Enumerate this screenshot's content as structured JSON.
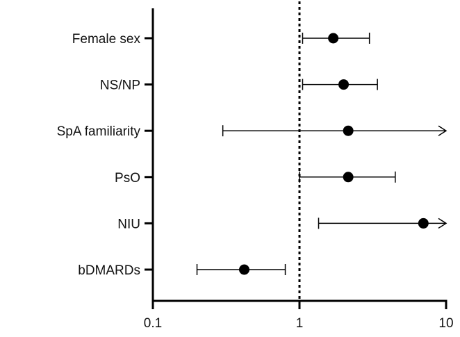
{
  "chart_data": {
    "type": "forest",
    "title": "",
    "xlabel": "",
    "ylabel": "",
    "xscale": "log",
    "xlim": [
      0.1,
      10
    ],
    "reference_line": 1,
    "x_ticks": [
      "0.1",
      "1",
      "10"
    ],
    "rows": [
      {
        "label": "Female sex",
        "estimate": 1.7,
        "lower": 1.05,
        "upper": 3.0,
        "upper_arrow": false
      },
      {
        "label": "NS/NP",
        "estimate": 2.0,
        "lower": 1.05,
        "upper": 3.4,
        "upper_arrow": false
      },
      {
        "label": "SpA familiarity",
        "estimate": 2.15,
        "lower": 0.3,
        "upper": 10,
        "upper_arrow": true
      },
      {
        "label": "PsO",
        "estimate": 2.15,
        "lower": 1.0,
        "upper": 4.5,
        "upper_arrow": false
      },
      {
        "label": "NIU",
        "estimate": 7.0,
        "lower": 1.35,
        "upper": 10,
        "upper_arrow": true
      },
      {
        "label": "bDMARDs",
        "estimate": 0.42,
        "lower": 0.2,
        "upper": 0.8,
        "upper_arrow": false
      }
    ],
    "colors": {
      "marker": "#000000",
      "axis": "#000000"
    }
  }
}
